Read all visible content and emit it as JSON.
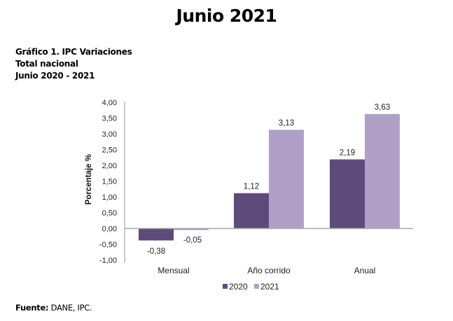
{
  "page": {
    "title": "Junio 2021"
  },
  "chart_heading": {
    "line1": "Gráfico 1. IPC Variaciones",
    "line2": "Total nacional",
    "line3": "Junio 2020 - 2021"
  },
  "footer": {
    "label": "Fuente:",
    "source": " DANE, IPC."
  },
  "colors": {
    "series_2020": "#5f4b7a",
    "series_2021": "#b0a0c8",
    "axis": "#a6a6a6"
  },
  "chart_data": {
    "type": "bar",
    "title": "Gráfico 1. IPC Variaciones - Total nacional - Junio 2020 - 2021",
    "categories": [
      "Mensual",
      "Año corrido",
      "Anual"
    ],
    "series": [
      {
        "name": "2020",
        "values": [
          -0.38,
          1.12,
          2.19
        ],
        "labels": [
          "-0,38",
          "1,12",
          "2,19"
        ]
      },
      {
        "name": "2021",
        "values": [
          -0.05,
          3.13,
          3.63
        ],
        "labels": [
          "-0,05",
          "3,13",
          "3,63"
        ]
      }
    ],
    "xlabel": "",
    "ylabel": "Porcentaje %",
    "ylim": [
      -1.0,
      4.0
    ],
    "yticks": [
      "4,00",
      "3,50",
      "3,00",
      "2,50",
      "2,00",
      "1,50",
      "1,00",
      "0,50",
      "0,00",
      "-0,50",
      "-1,00"
    ],
    "grid": false,
    "legend_position": "bottom",
    "source": "DANE, IPC."
  }
}
